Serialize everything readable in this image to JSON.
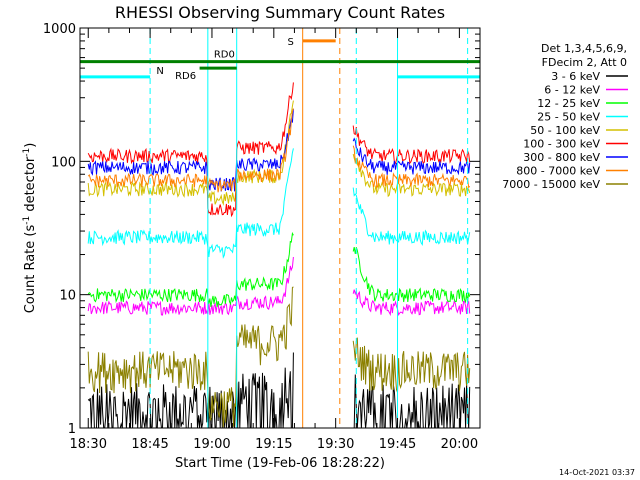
{
  "chart_data": {
    "type": "line",
    "title": "RHESSI Observing Summary Count Rates",
    "xlabel": "Start Time (19-Feb-06 18:28:22)",
    "ylabel": "Count Rate (s⁻¹ detector⁻¹)",
    "ylabel_parts": {
      "main": "Count Rate (s",
      "sup1": "-1",
      "mid": " detector",
      "sup2": "-1",
      "end": ")"
    },
    "footer": "14-Oct-2021 03:37",
    "x_start": "18:28:22",
    "x_range_minutes": [
      -2,
      95
    ],
    "x_ticks": [
      {
        "label": "18:30",
        "min": 0
      },
      {
        "label": "18:45",
        "min": 15
      },
      {
        "label": "19:00",
        "min": 30
      },
      {
        "label": "19:15",
        "min": 45
      },
      {
        "label": "19:30",
        "min": 60
      },
      {
        "label": "19:45",
        "min": 75
      },
      {
        "label": "20:00",
        "min": 90
      }
    ],
    "y_scale": "log",
    "ylim": [
      1,
      1000
    ],
    "y_ticks": [
      {
        "label": "1",
        "value": 1
      },
      {
        "label": "10",
        "value": 10
      },
      {
        "label": "100",
        "value": 100
      },
      {
        "label": "1000",
        "value": 1000
      }
    ],
    "legend_header": [
      "Det 1,3,4,5,6,9,",
      "FDecim 2, Att 0"
    ],
    "legend_position": "right",
    "series": [
      {
        "name": "3 - 6 keV",
        "color": "#000000",
        "base": 1.4
      },
      {
        "name": "6 - 12 keV",
        "color": "#ff00ff",
        "base": 8
      },
      {
        "name": "12 - 25 keV",
        "color": "#00ff00",
        "base": 10
      },
      {
        "name": "25 - 50 keV",
        "color": "#00ffff",
        "base": 27
      },
      {
        "name": "50 - 100 keV",
        "color": "#d4c000",
        "base": 62
      },
      {
        "name": "100 - 300 keV",
        "color": "#ff0000",
        "base": 110
      },
      {
        "name": "300 - 800 keV",
        "color": "#0000ff",
        "base": 90
      },
      {
        "name": "800 - 7000 keV",
        "color": "#ff8000",
        "base": 72
      },
      {
        "name": "7000 - 15000 keV",
        "color": "#8b8000",
        "base": 2.8
      }
    ],
    "data_gaps_minutes": [
      [
        50,
        64
      ]
    ],
    "flags": [
      {
        "label": "N",
        "color": "#00ffff",
        "intervals": [
          [
            -2,
            15
          ],
          [
            75,
            95
          ]
        ],
        "level": 430
      },
      {
        "label": "S",
        "color": "#ff8000",
        "intervals": [
          [
            52,
            60
          ]
        ],
        "level": 800
      },
      {
        "label": "RD0",
        "color": "#008000",
        "intervals": [
          [
            -2,
            95
          ]
        ],
        "level": 560
      },
      {
        "label": "RD6",
        "color": "#008000",
        "intervals": [
          [
            27,
            36
          ]
        ],
        "level": 500
      }
    ],
    "vertical_markers": [
      {
        "color": "#00ffff",
        "style": "dashed",
        "min": 15
      },
      {
        "color": "#00ffff",
        "style": "solid",
        "min": 29
      },
      {
        "color": "#00ffff",
        "style": "solid",
        "min": 36
      },
      {
        "color": "#ff8000",
        "style": "solid",
        "min": 52
      },
      {
        "color": "#ff8000",
        "style": "dashed",
        "min": 61
      },
      {
        "color": "#00ffff",
        "style": "dashed",
        "min": 65
      },
      {
        "color": "#00ffff",
        "style": "solid",
        "min": 75
      },
      {
        "color": "#00ffff",
        "style": "dashed",
        "min": 92
      }
    ]
  }
}
